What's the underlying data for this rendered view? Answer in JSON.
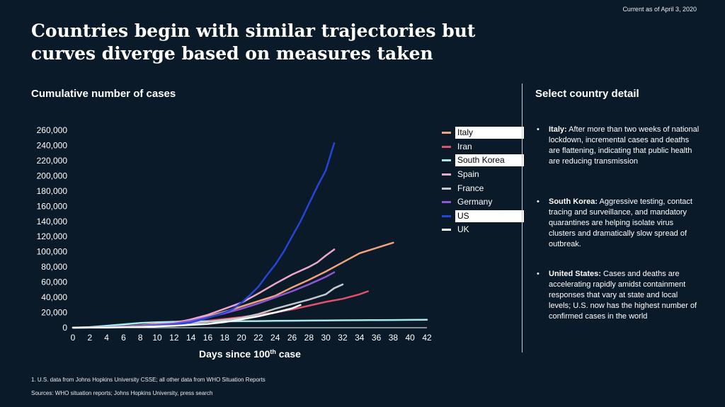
{
  "header": {
    "as_of": "Current as of April 3, 2020",
    "headline": "Countries begin with similar trajectories but curves diverge based on measures taken"
  },
  "chart_title": "Cumulative number of cases",
  "chart_data": {
    "type": "line",
    "title": "Cumulative number of cases",
    "xlabel": "Days since 100",
    "xlabel_sup": "th",
    "xlabel_tail": " case",
    "ylabel": "",
    "xlim": [
      0,
      42
    ],
    "ylim": [
      0,
      260000
    ],
    "xticks": [
      0,
      2,
      4,
      6,
      8,
      10,
      12,
      14,
      16,
      18,
      20,
      22,
      24,
      26,
      28,
      30,
      32,
      34,
      36,
      38,
      40,
      42
    ],
    "yticks": [
      0,
      20000,
      40000,
      60000,
      80000,
      100000,
      120000,
      140000,
      160000,
      180000,
      200000,
      220000,
      240000,
      260000
    ],
    "ytick_labels": [
      "0",
      "20,000",
      "40,000",
      "60,000",
      "80,000",
      "100,000",
      "120,000",
      "140,000",
      "160,000",
      "180,000",
      "200,000",
      "220,000",
      "240,000",
      "260,000"
    ],
    "grid": false,
    "legend_position": "right",
    "series": [
      {
        "name": "Italy",
        "color": "#f0a27c",
        "highlight": true,
        "x": [
          0,
          2,
          4,
          6,
          8,
          10,
          12,
          14,
          16,
          18,
          20,
          22,
          24,
          26,
          28,
          30,
          32,
          34,
          36,
          38
        ],
        "y": [
          100,
          400,
          1000,
          2000,
          3000,
          5000,
          7500,
          10000,
          15000,
          21000,
          28000,
          35000,
          42000,
          53000,
          63000,
          74000,
          86000,
          98000,
          105000,
          112000
        ]
      },
      {
        "name": "Iran",
        "color": "#e0516a",
        "highlight": false,
        "x": [
          0,
          4,
          8,
          12,
          16,
          20,
          22,
          24,
          26,
          28,
          30,
          32,
          34,
          35
        ],
        "y": [
          100,
          500,
          2000,
          5000,
          9000,
          14000,
          17000,
          20000,
          24000,
          29000,
          34000,
          38000,
          44000,
          48000
        ]
      },
      {
        "name": "South Korea",
        "color": "#a9e8e8",
        "highlight": true,
        "x": [
          0,
          2,
          4,
          6,
          8,
          10,
          12,
          14,
          16,
          18,
          20,
          22,
          24,
          26,
          28,
          30,
          32,
          34,
          35,
          36,
          38,
          40,
          42
        ],
        "y": [
          100,
          800,
          2500,
          4500,
          6300,
          7300,
          7800,
          8100,
          8300,
          8400,
          8600,
          8800,
          9000,
          9200,
          9400,
          9600,
          9800,
          9900,
          10000,
          10100,
          10200,
          10300,
          10400
        ]
      },
      {
        "name": "Spain",
        "color": "#eca8cc",
        "highlight": false,
        "x": [
          0,
          4,
          8,
          12,
          14,
          16,
          18,
          20,
          22,
          24,
          26,
          28,
          29,
          30,
          31
        ],
        "y": [
          100,
          500,
          2000,
          6000,
          11000,
          17000,
          25000,
          33000,
          45000,
          58000,
          70000,
          80000,
          86000,
          95000,
          103000
        ]
      },
      {
        "name": "France",
        "color": "#c5c9cd",
        "highlight": false,
        "x": [
          0,
          4,
          8,
          12,
          16,
          20,
          22,
          24,
          26,
          28,
          30,
          31,
          32
        ],
        "y": [
          100,
          500,
          1500,
          4500,
          7800,
          13000,
          18000,
          25000,
          31000,
          37000,
          44000,
          52000,
          57000
        ]
      },
      {
        "name": "Germany",
        "color": "#8e58d4",
        "highlight": false,
        "x": [
          0,
          4,
          8,
          12,
          14,
          16,
          18,
          20,
          22,
          24,
          26,
          28,
          30,
          31
        ],
        "y": [
          100,
          600,
          2500,
          5500,
          9000,
          14000,
          19000,
          25000,
          32000,
          40000,
          48000,
          57000,
          67000,
          73000
        ]
      },
      {
        "name": "US",
        "color": "#2545d8",
        "highlight": true,
        "x": [
          0,
          4,
          8,
          12,
          14,
          16,
          18,
          19,
          20,
          21,
          22,
          23,
          24,
          25,
          26,
          27,
          28,
          29,
          30,
          31
        ],
        "y": [
          100,
          400,
          1500,
          4000,
          7000,
          13000,
          20000,
          25000,
          33000,
          43000,
          54000,
          69000,
          83000,
          100000,
          120000,
          140000,
          163000,
          186000,
          207000,
          243000
        ]
      },
      {
        "name": "UK",
        "color": "#ffffff",
        "highlight": false,
        "x": [
          0,
          4,
          8,
          12,
          16,
          18,
          20,
          22,
          24,
          26,
          27
        ],
        "y": [
          100,
          300,
          1000,
          2500,
          5000,
          7500,
          11000,
          15000,
          20000,
          25500,
          30000
        ]
      }
    ]
  },
  "detail_title": "Select country detail",
  "details": [
    {
      "bullet": "•",
      "lead": "Italy:",
      "text": "After more than two weeks of national lockdown, incremental cases and deaths are flattening, indicating that public health are reducing transmission"
    },
    {
      "bullet": "•",
      "lead": "South Korea:",
      "text": "Aggressive testing, contact tracing and surveillance, and mandatory quarantines are helping isolate virus clusters and dramatically slow spread of outbreak."
    },
    {
      "bullet": "•",
      "lead": "United States:",
      "text": "Cases and deaths are accelerating rapidly amidst containment responses that vary at state and local levels; U.S. now has the highest number of confirmed cases in the world"
    }
  ],
  "footnote": "1. U.S. data from Johns Hopkins University CSSE; all other data from WHO Situation Reports",
  "sources": "Sources: WHO situation reports; Johns Hopkins University, press search"
}
